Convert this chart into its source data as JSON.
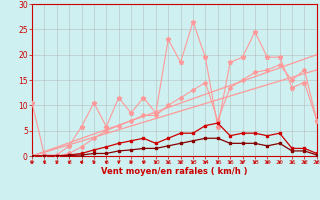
{
  "x": [
    0,
    1,
    2,
    3,
    4,
    5,
    6,
    7,
    8,
    9,
    10,
    11,
    12,
    13,
    14,
    15,
    16,
    17,
    18,
    19,
    20,
    21,
    22,
    23
  ],
  "line1_spiky": [
    10.5,
    0.2,
    0.2,
    2.0,
    5.8,
    10.5,
    5.8,
    11.5,
    8.5,
    11.5,
    8.5,
    23.0,
    18.5,
    26.5,
    19.5,
    5.8,
    18.5,
    19.5,
    24.5,
    19.5,
    19.5,
    13.5,
    14.5,
    7.0
  ],
  "line2_smooth": [
    0.0,
    0.0,
    0.0,
    0.5,
    1.8,
    3.5,
    5.0,
    6.0,
    7.0,
    8.0,
    8.0,
    10.0,
    11.5,
    13.0,
    14.5,
    7.0,
    13.5,
    15.0,
    16.5,
    17.0,
    18.0,
    15.0,
    17.0,
    7.0
  ],
  "line3_red": [
    0.0,
    0.0,
    0.0,
    0.2,
    0.5,
    1.2,
    1.8,
    2.5,
    3.0,
    3.5,
    2.5,
    3.5,
    4.5,
    4.5,
    6.0,
    6.5,
    4.0,
    4.5,
    4.5,
    4.0,
    4.5,
    1.5,
    1.5,
    0.5
  ],
  "line4_darkred": [
    0.0,
    0.0,
    0.0,
    0.1,
    0.2,
    0.5,
    0.5,
    1.0,
    1.2,
    1.5,
    1.5,
    2.0,
    2.5,
    3.0,
    3.5,
    3.5,
    2.5,
    2.5,
    2.5,
    2.0,
    2.5,
    1.0,
    1.0,
    0.2
  ],
  "line5_slope": [
    0.0,
    0.74,
    1.48,
    2.22,
    2.96,
    3.7,
    4.44,
    5.18,
    5.92,
    6.66,
    7.4,
    8.14,
    8.88,
    9.62,
    10.36,
    11.1,
    11.84,
    12.58,
    13.32,
    14.06,
    14.8,
    15.54,
    16.28,
    17.0
  ],
  "line6_slope": [
    0.0,
    0.87,
    1.74,
    2.61,
    3.48,
    4.35,
    5.22,
    6.09,
    6.96,
    7.83,
    8.7,
    9.57,
    10.44,
    11.31,
    12.18,
    13.05,
    13.92,
    14.79,
    15.66,
    16.53,
    17.4,
    18.27,
    19.14,
    20.0
  ],
  "bg_color": "#cff0f0",
  "grid_color": "#b0b0b0",
  "color_light_pink": "#ff9999",
  "color_red": "#cc0000",
  "color_dark_red": "#880000",
  "xlabel": "Vent moyen/en rafales ( km/h )",
  "ylim": [
    0,
    30
  ],
  "xlim": [
    0,
    23
  ],
  "yticks": [
    0,
    5,
    10,
    15,
    20,
    25,
    30
  ],
  "xticks": [
    0,
    1,
    2,
    3,
    4,
    5,
    6,
    7,
    8,
    9,
    10,
    11,
    12,
    13,
    14,
    15,
    16,
    17,
    18,
    19,
    20,
    21,
    22,
    23
  ]
}
